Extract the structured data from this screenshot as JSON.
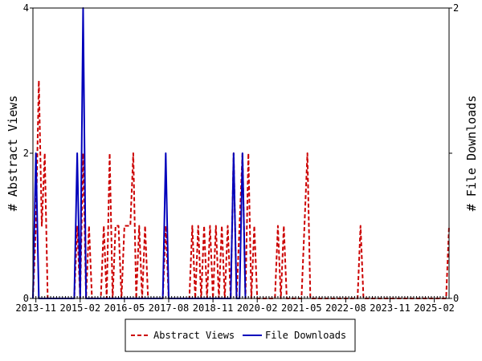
{
  "chart_data": {
    "type": "line",
    "title": "",
    "ylabel_left": "# Abstract Views",
    "ylabel_right": "# File Downloads",
    "xlim": [
      "2013-10",
      "2025-07"
    ],
    "ylim_left": [
      0,
      4
    ],
    "ylim_right": [
      0,
      2
    ],
    "y_ticks_left": [
      "0",
      "2",
      "4"
    ],
    "y_ticks_right": [
      "0",
      "1",
      "2"
    ],
    "x_ticks": [
      {
        "date": "2013-11",
        "label": "2013-11"
      },
      {
        "date": "2015-02",
        "label": "2015-02"
      },
      {
        "date": "2016-05",
        "label": "2016-05"
      },
      {
        "date": "2017-08",
        "label": "2017-08"
      },
      {
        "date": "2018-11",
        "label": "2018-11"
      },
      {
        "date": "2020-02",
        "label": "2020-02"
      },
      {
        "date": "2021-05",
        "label": "2021-05"
      },
      {
        "date": "2022-08",
        "label": "2022-08"
      },
      {
        "date": "2023-11",
        "label": "2023-11"
      },
      {
        "date": "2025-02",
        "label": "2025-02"
      }
    ],
    "grid": false,
    "legend_position": "bottom",
    "series": [
      {
        "name": "Abstract Views",
        "axis": "left",
        "color": "#cc0000",
        "style": "dashed",
        "points": [
          [
            "2013-10",
            0
          ],
          [
            "2013-11",
            1
          ],
          [
            "2013-12",
            3
          ],
          [
            "2014-01",
            1
          ],
          [
            "2014-02",
            2
          ],
          [
            "2014-03",
            0
          ],
          [
            "2014-12",
            0
          ],
          [
            "2015-01",
            1
          ],
          [
            "2015-02",
            0
          ],
          [
            "2015-03",
            2
          ],
          [
            "2015-04",
            0
          ],
          [
            "2015-05",
            1
          ],
          [
            "2015-06",
            0
          ],
          [
            "2015-09",
            0
          ],
          [
            "2015-10",
            1
          ],
          [
            "2015-11",
            0
          ],
          [
            "2015-12",
            2
          ],
          [
            "2016-01",
            0
          ],
          [
            "2016-02",
            1
          ],
          [
            "2016-03",
            1
          ],
          [
            "2016-04",
            0
          ],
          [
            "2016-05",
            1
          ],
          [
            "2016-06",
            1
          ],
          [
            "2016-07",
            1
          ],
          [
            "2016-08",
            2
          ],
          [
            "2016-09",
            0
          ],
          [
            "2016-10",
            1
          ],
          [
            "2016-11",
            0
          ],
          [
            "2016-12",
            1
          ],
          [
            "2017-01",
            0
          ],
          [
            "2017-06",
            0
          ],
          [
            "2017-07",
            1
          ],
          [
            "2017-08",
            0
          ],
          [
            "2018-03",
            0
          ],
          [
            "2018-04",
            1
          ],
          [
            "2018-05",
            0
          ],
          [
            "2018-06",
            1
          ],
          [
            "2018-07",
            0
          ],
          [
            "2018-08",
            1
          ],
          [
            "2018-09",
            0
          ],
          [
            "2018-10",
            1
          ],
          [
            "2018-11",
            0
          ],
          [
            "2018-12",
            1
          ],
          [
            "2019-01",
            0
          ],
          [
            "2019-02",
            1
          ],
          [
            "2019-03",
            0
          ],
          [
            "2019-04",
            1
          ],
          [
            "2019-05",
            0
          ],
          [
            "2019-06",
            2
          ],
          [
            "2019-07",
            0
          ],
          [
            "2019-08",
            1
          ],
          [
            "2019-09",
            2
          ],
          [
            "2019-10",
            0
          ],
          [
            "2019-11",
            2
          ],
          [
            "2019-12",
            0
          ],
          [
            "2020-01",
            1
          ],
          [
            "2020-02",
            0
          ],
          [
            "2020-08",
            0
          ],
          [
            "2020-09",
            1
          ],
          [
            "2020-10",
            0
          ],
          [
            "2020-11",
            1
          ],
          [
            "2020-12",
            0
          ],
          [
            "2021-05",
            0
          ],
          [
            "2021-06",
            1
          ],
          [
            "2021-07",
            2
          ],
          [
            "2021-08",
            0
          ],
          [
            "2022-12",
            0
          ],
          [
            "2023-01",
            1
          ],
          [
            "2023-02",
            0
          ],
          [
            "2025-06",
            0
          ],
          [
            "2025-07",
            1
          ]
        ]
      },
      {
        "name": "File Downloads",
        "axis": "right",
        "color": "#0000bb",
        "style": "solid",
        "points": [
          [
            "2013-10",
            0
          ],
          [
            "2013-11",
            1
          ],
          [
            "2013-12",
            0
          ],
          [
            "2014-01",
            0
          ],
          [
            "2014-12",
            0
          ],
          [
            "2015-01",
            1
          ],
          [
            "2015-02",
            0
          ],
          [
            "2015-03",
            2
          ],
          [
            "2015-04",
            0
          ],
          [
            "2017-06",
            0
          ],
          [
            "2017-07",
            1
          ],
          [
            "2017-08",
            0
          ],
          [
            "2019-05",
            0
          ],
          [
            "2019-06",
            1
          ],
          [
            "2019-07",
            0
          ],
          [
            "2019-08",
            0
          ],
          [
            "2019-09",
            1
          ],
          [
            "2019-10",
            0
          ]
        ]
      }
    ]
  }
}
